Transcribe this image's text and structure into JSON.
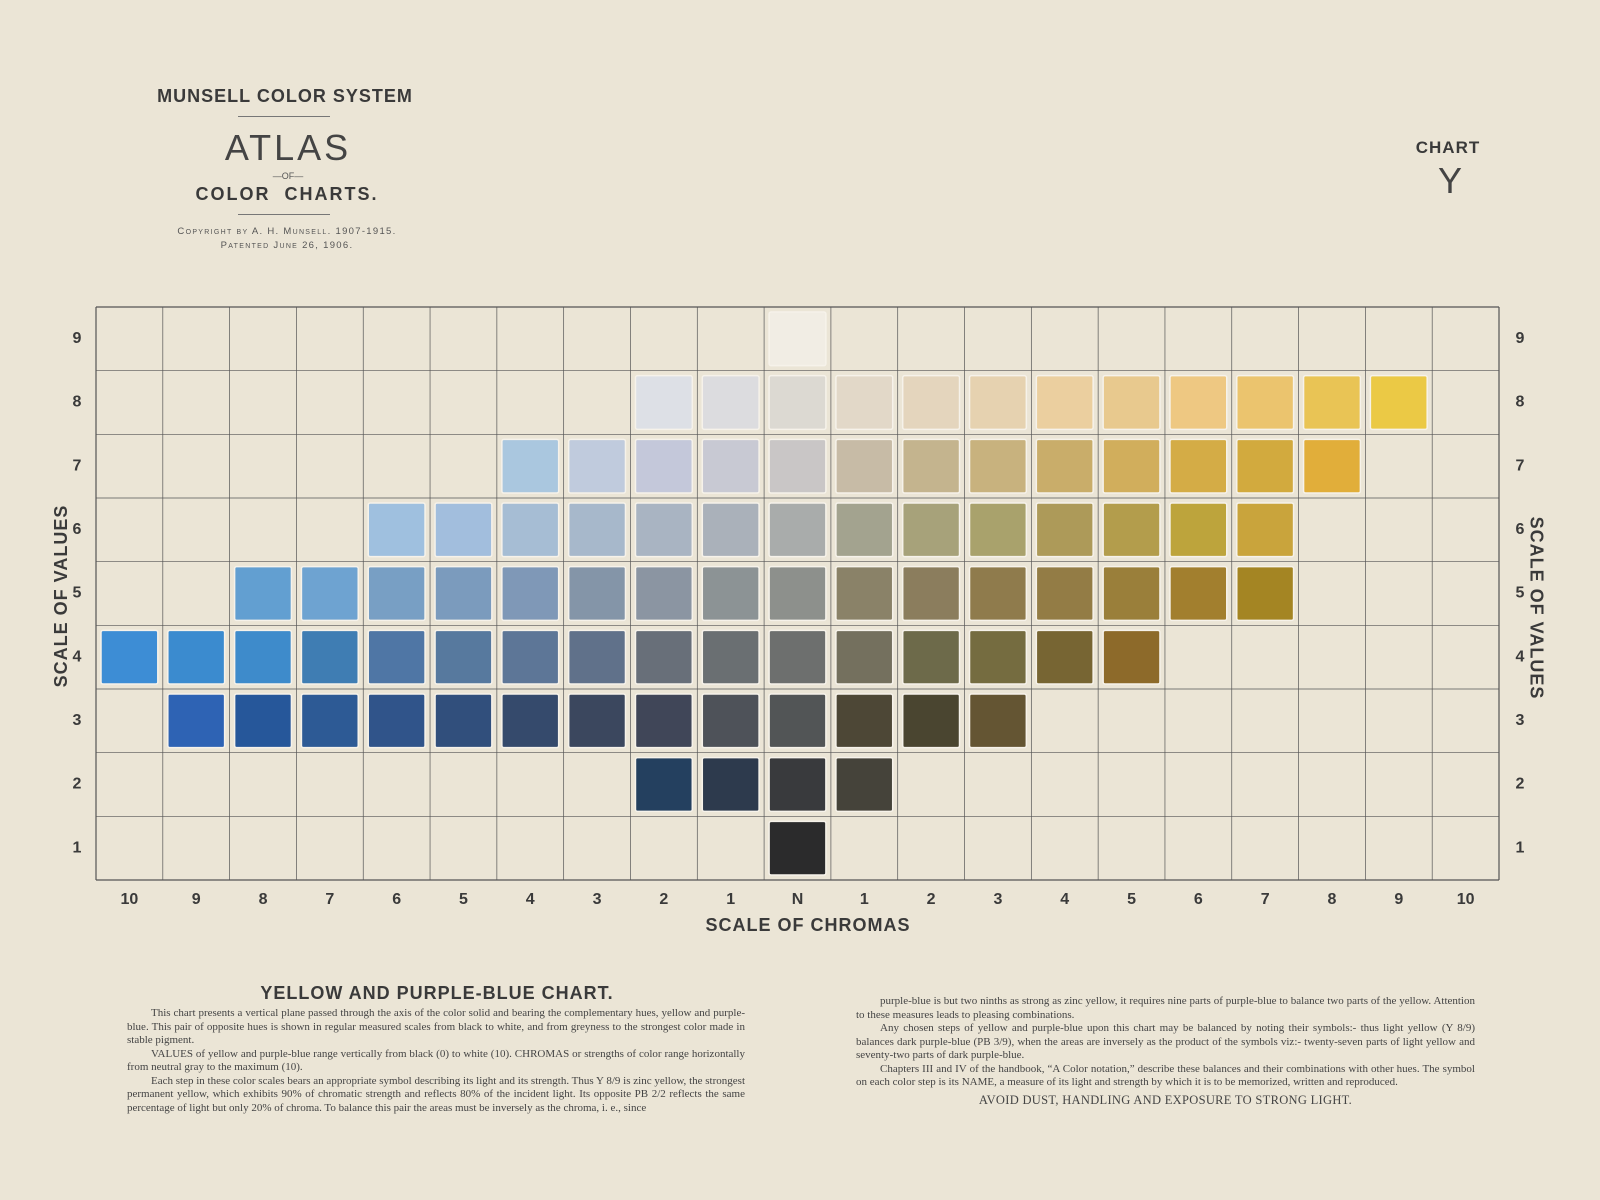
{
  "header": {
    "system": "MUNSELL COLOR SYSTEM",
    "title": "ATLAS",
    "of": "—OF—",
    "subtitle": "COLOR  CHARTS.",
    "copyright": "Copyright by A. H. Munsell. 1907-1915.",
    "patent": "Patented June 26, 1906.",
    "chart_label": "CHART",
    "chart_name": "Y"
  },
  "grid": {
    "value_axis_title": "SCALE OF VALUES",
    "chroma_axis_title": "SCALE OF CHROMAS",
    "columns": [
      "10",
      "9",
      "8",
      "7",
      "6",
      "5",
      "4",
      "3",
      "2",
      "1",
      "N",
      "1",
      "2",
      "3",
      "4",
      "5",
      "6",
      "7",
      "8",
      "9",
      "10"
    ],
    "rows": [
      {
        "label": "9",
        "swatches": [
          null,
          null,
          null,
          null,
          null,
          null,
          null,
          null,
          null,
          null,
          "#f1ede4",
          null,
          null,
          null,
          null,
          null,
          null,
          null,
          null,
          null,
          null
        ]
      },
      {
        "label": "8",
        "swatches": [
          null,
          null,
          null,
          null,
          null,
          null,
          null,
          null,
          "#dde0e6",
          "#dcdcdf",
          "#dcd9d2",
          "#e2d8c8",
          "#e4d5bd",
          "#e6d2b0",
          "#ebcf9f",
          "#e8c98e",
          "#eec882",
          "#ebc46e",
          "#e9c455",
          "#ebc945",
          null
        ]
      },
      {
        "label": "7",
        "swatches": [
          null,
          null,
          null,
          null,
          null,
          null,
          "#aac7df",
          "#c0cbdd",
          "#c4c8da",
          "#c8c9d3",
          "#c9c6c6",
          "#c7bba6",
          "#c4b48e",
          "#c8b27e",
          "#c9ad6a",
          "#d1ae5c",
          "#d4ac46",
          "#d2aa3e",
          "#e1ae3a",
          null,
          null
        ]
      },
      {
        "label": "6",
        "swatches": [
          null,
          null,
          null,
          null,
          "#9fc0df",
          "#a2bedd",
          "#a6bdd4",
          "#a7b8cb",
          "#a9b4c2",
          "#aab1ba",
          "#a9acab",
          "#a3a38f",
          "#a7a27a",
          "#a9a26c",
          "#ad9a59",
          "#b39d4c",
          "#bda43c",
          "#c9a43c",
          null,
          null,
          null
        ]
      },
      {
        "label": "5",
        "swatches": [
          null,
          null,
          "#629fd1",
          "#6ea3d1",
          "#789fc4",
          "#7b9bbd",
          "#7f98b7",
          "#8495a8",
          "#8b95a2",
          "#8c9395",
          "#8d908c",
          "#8a8268",
          "#8b7d5d",
          "#8f7b4c",
          "#937c45",
          "#9a7f3a",
          "#a27f2e",
          "#a48523",
          null,
          null,
          null
        ]
      },
      {
        "label": "4",
        "swatches": [
          "#3d8dd5",
          "#3b8bcf",
          "#3e8bcb",
          "#3f7db3",
          "#4f76a5",
          "#57799e",
          "#5d7697",
          "#60718a",
          "#686f79",
          "#6a6f72",
          "#6d6f6e",
          "#74705e",
          "#6d6a4a",
          "#756c40",
          "#776533",
          "#8d6a2a",
          null,
          null,
          null,
          null,
          null
        ]
      },
      {
        "label": "3",
        "swatches": [
          null,
          "#2e63b4",
          "#26579a",
          "#2d5a95",
          "#30548a",
          "#314f7c",
          "#354a6c",
          "#3b475e",
          "#404658",
          "#4e5259",
          "#525556",
          "#4d4736",
          "#4a4530",
          "#645533",
          null,
          null,
          null,
          null,
          null,
          null,
          null
        ]
      },
      {
        "label": "2",
        "swatches": [
          null,
          null,
          null,
          null,
          null,
          null,
          null,
          null,
          "#24405f",
          "#2d3a4d",
          "#393a3d",
          "#45433a",
          null,
          null,
          null,
          null,
          null,
          null,
          null,
          null,
          null
        ]
      },
      {
        "label": "1",
        "swatches": [
          null,
          null,
          null,
          null,
          null,
          null,
          null,
          null,
          null,
          null,
          "#2b2b2c",
          null,
          null,
          null,
          null,
          null,
          null,
          null,
          null,
          null,
          null
        ]
      }
    ]
  },
  "text": {
    "heading": "YELLOW AND PURPLE-BLUE CHART.",
    "left": [
      "This chart presents a vertical plane passed through the axis of the color solid and bearing the complementary hues, yellow and purple-blue. This pair of opposite hues is shown in regular measured scales from black to white, and from greyness to the strongest color made in stable pigment.",
      "VALUES of yellow and purple-blue range vertically from black (0) to white (10). CHROMAS or strengths of color range horizontally from neutral gray to the maximum (10).",
      "Each step in these color scales bears an appropriate symbol describing its light and its strength. Thus Y 8/9 is zinc yellow, the strongest permanent yellow, which exhibits 90% of chromatic strength and reflects 80% of the incident light. Its opposite PB 2/2 reflects the same percentage of light but only 20% of chroma. To balance this pair the areas must be inversely as the chroma, i. e., since"
    ],
    "right": [
      "purple-blue is but two ninths as strong as zinc yellow, it requires nine parts of purple-blue to balance two parts of the yellow. Attention to these measures leads to pleasing combinations.",
      "Any chosen steps of yellow and purple-blue upon this chart may be balanced by noting their symbols:- thus light yellow (Y 8/9) balances dark purple-blue (PB 3/9), when the areas are inversely as the product of the symbols viz:- twenty-seven parts of light yellow and seventy-two parts of dark purple-blue.",
      "Chapters III and IV of the handbook, “A Color notation,” describe these balances and their combinations with other hues. The symbol on each color step is its NAME, a measure of its light and strength by which it is to be memorized, written and reproduced."
    ],
    "warning": "AVOID DUST, HANDLING AND EXPOSURE TO STRONG LIGHT."
  }
}
